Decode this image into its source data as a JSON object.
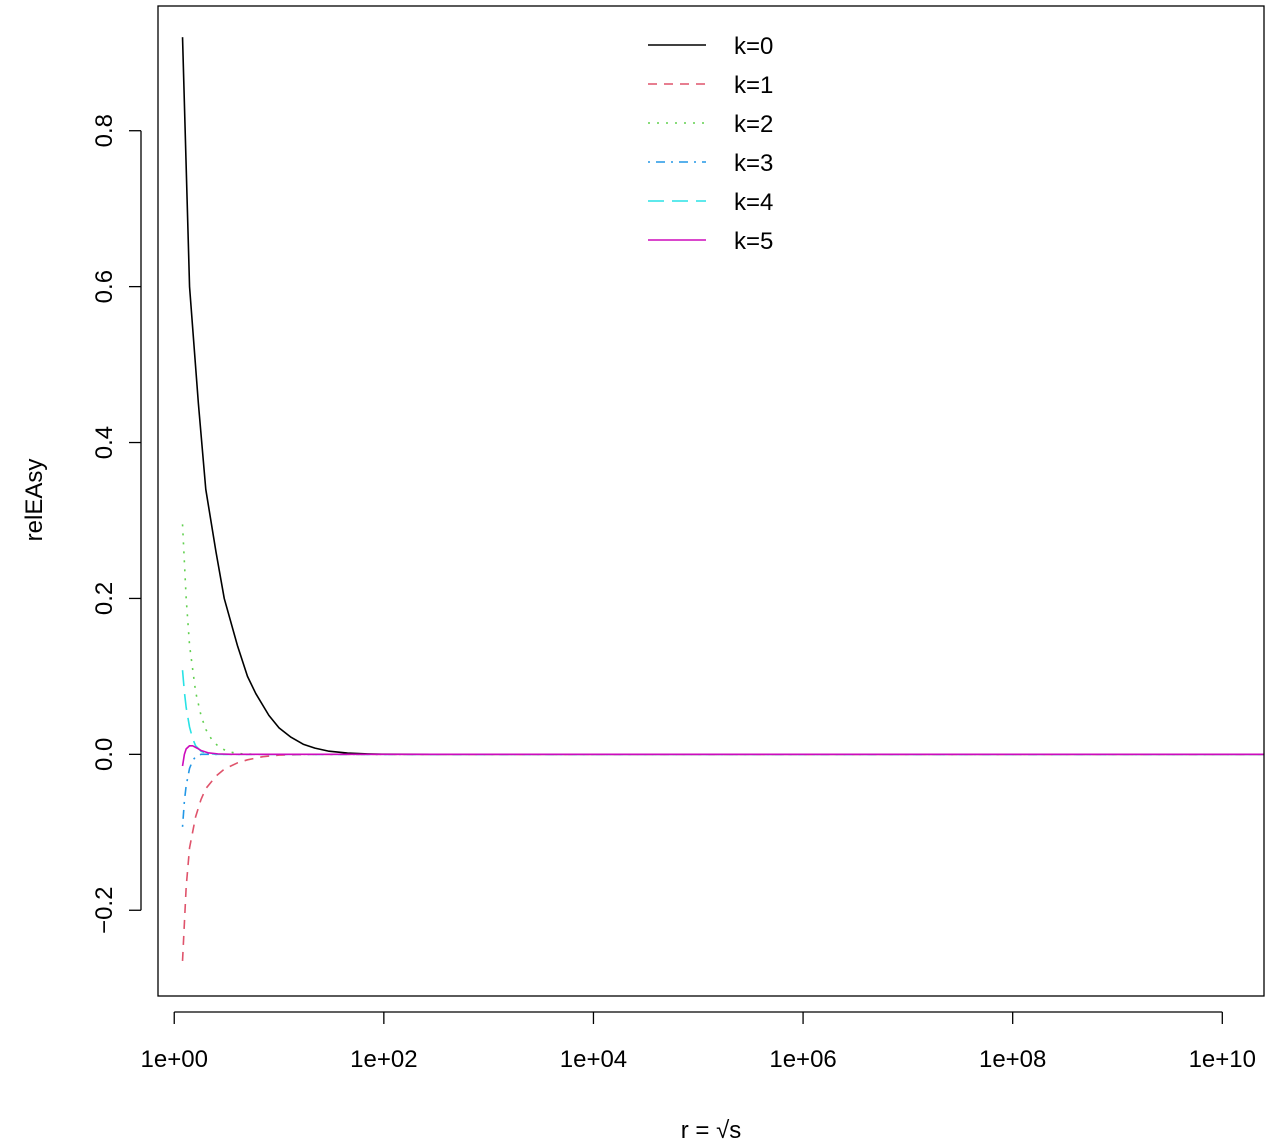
{
  "chart_data": {
    "type": "line",
    "title": "",
    "xlabel": "r = √s",
    "ylabel": "relEAsy",
    "x_scale": "log10",
    "xlim": [
      0.7,
      25000000000
    ],
    "ylim": [
      -0.31,
      0.96
    ],
    "xticks": [
      1,
      100,
      10000,
      1000000,
      100000000,
      10000000000
    ],
    "xtick_labels": [
      "1e+00",
      "1e+02",
      "1e+04",
      "1e+06",
      "1e+08",
      "1e+10"
    ],
    "yticks": [
      -0.2,
      0.0,
      0.2,
      0.4,
      0.6,
      0.8
    ],
    "ytick_labels": [
      "−0.2",
      "0.0",
      "0.2",
      "0.4",
      "0.6",
      "0.8"
    ],
    "grid": false,
    "legend": "top-center",
    "series": [
      {
        "name": "k=0",
        "color": "#000000",
        "dash": "",
        "x": [
          1.2,
          1.4,
          1.7,
          2,
          2.5,
          3,
          4,
          5,
          6,
          8,
          10,
          13,
          17,
          22,
          30,
          45,
          70,
          100,
          300,
          25000000000
        ],
        "y": [
          0.92,
          0.6,
          0.45,
          0.34,
          0.26,
          0.2,
          0.14,
          0.1,
          0.078,
          0.05,
          0.034,
          0.022,
          0.013,
          0.008,
          0.004,
          0.0016,
          0.0006,
          0.0002,
          0.0,
          0.0
        ]
      },
      {
        "name": "k=1",
        "color": "#DF536B",
        "dash": "9,7",
        "x": [
          1.2,
          1.3,
          1.4,
          1.6,
          1.8,
          2,
          2.5,
          3,
          4,
          5,
          7,
          10,
          20,
          25000000000
        ],
        "y": [
          -0.265,
          -0.17,
          -0.12,
          -0.08,
          -0.058,
          -0.044,
          -0.028,
          -0.019,
          -0.011,
          -0.007,
          -0.003,
          -0.001,
          0.0,
          0.0
        ]
      },
      {
        "name": "k=2",
        "color": "#61D04F",
        "dash": "2,7",
        "x": [
          1.2,
          1.3,
          1.4,
          1.6,
          1.8,
          2,
          2.3,
          2.7,
          3.2,
          4,
          6,
          25000000000
        ],
        "y": [
          0.295,
          0.2,
          0.14,
          0.08,
          0.05,
          0.032,
          0.018,
          0.009,
          0.004,
          0.001,
          0.0,
          0.0
        ]
      },
      {
        "name": "k=3",
        "color": "#2297E6",
        "dash": "2,6,9,6",
        "x": [
          1.2,
          1.25,
          1.3,
          1.4,
          1.5,
          1.6,
          1.8,
          2.2,
          25000000000
        ],
        "y": [
          -0.093,
          -0.06,
          -0.04,
          -0.018,
          -0.008,
          -0.003,
          0.0,
          0.0,
          0.0
        ]
      },
      {
        "name": "k=4",
        "color": "#28E2E5",
        "dash": "16,8",
        "x": [
          1.2,
          1.25,
          1.3,
          1.4,
          1.5,
          1.6,
          1.8,
          2,
          2.5,
          25000000000
        ],
        "y": [
          0.108,
          0.08,
          0.06,
          0.035,
          0.02,
          0.011,
          0.004,
          0.0015,
          0.0,
          0.0
        ]
      },
      {
        "name": "k=5",
        "color": "#CD0BBC",
        "dash": "",
        "x": [
          1.2,
          1.25,
          1.3,
          1.4,
          1.5,
          1.65,
          1.8,
          2.1,
          2.6,
          3.5,
          25000000000
        ],
        "y": [
          -0.015,
          0.0,
          0.007,
          0.011,
          0.011,
          0.008,
          0.005,
          0.002,
          0.0006,
          0.0,
          0.0
        ]
      }
    ]
  }
}
